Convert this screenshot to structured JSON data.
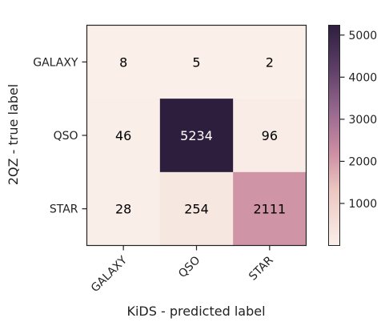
{
  "chart_data": {
    "type": "heatmap",
    "xlabel": "KiDS - predicted label",
    "ylabel": "2QZ - true label",
    "x_categories": [
      "GALAXY",
      "QSO",
      "STAR"
    ],
    "y_categories": [
      "GALAXY",
      "QSO",
      "STAR"
    ],
    "values": [
      [
        8,
        5,
        2
      ],
      [
        46,
        5234,
        96
      ],
      [
        28,
        254,
        2111
      ]
    ],
    "colorbar": {
      "min": 0,
      "max": 5234,
      "ticks": [
        1000,
        2000,
        3000,
        4000,
        5000
      ],
      "tick_labels": [
        "1000",
        "2000",
        "3000",
        "4000",
        "5000"
      ]
    },
    "colors": {
      "low": "#faefe9",
      "mid": "#cc8ea3",
      "high": "#2d1e3e"
    }
  }
}
